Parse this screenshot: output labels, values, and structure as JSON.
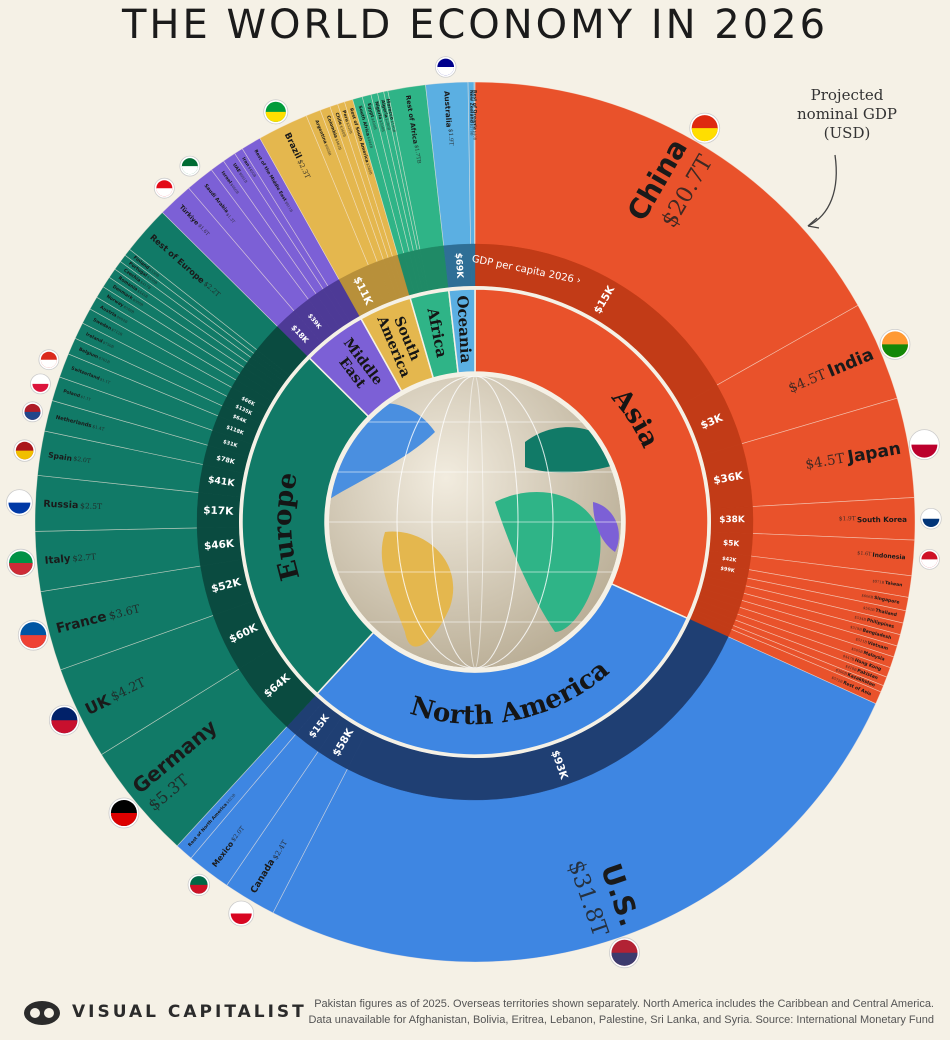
{
  "title": "THE WORLD ECONOMY IN 2026",
  "annotation": "Projected nominal GDP (USD)",
  "per_capita_label": "GDP per capita 2026 ›",
  "footer": {
    "logo": "VISUAL CAPITALIST",
    "note_1": "Pakistan figures as of 2025. Overseas territories shown separately. North America includes the Caribbean and Central America.",
    "note_2": "Data unavailable for Afghanistan, Bolivia, Eritrea, Lebanon, Palestine, Sri Lanka, and Syria. Source: International Monetary Fund"
  },
  "chart_data": {
    "type": "sunburst",
    "title": "THE WORLD ECONOMY IN 2026",
    "unit": "Projected nominal GDP (USD, trillions)",
    "regions": [
      {
        "name": "Asia",
        "color": "#e9522b",
        "dark": "#c23b17",
        "countries": [
          {
            "name": "China",
            "gdp": 20.7,
            "label": "$20.7T",
            "per_capita": "$15K",
            "flag": [
              "#de2910",
              "#ffde00"
            ]
          },
          {
            "name": "India",
            "gdp": 4.5,
            "label": "$4.5T",
            "per_capita": "$3K",
            "flag": [
              "#ff9933",
              "#138808"
            ]
          },
          {
            "name": "Japan",
            "gdp": 4.5,
            "label": "$4.5T",
            "per_capita": "$36K",
            "flag": [
              "#ffffff",
              "#bc002d"
            ]
          },
          {
            "name": "South Korea",
            "gdp": 1.9,
            "label": "$1.9T",
            "per_capita": "$38K",
            "flag": [
              "#ffffff",
              "#003478"
            ]
          },
          {
            "name": "Indonesia",
            "gdp": 1.6,
            "label": "$1.6T",
            "per_capita": "$5K",
            "flag": [
              "#ce1126",
              "#ffffff"
            ]
          },
          {
            "name": "Taiwan",
            "gdp": 0.971,
            "label": "$971B",
            "per_capita": "$42K"
          },
          {
            "name": "Singapore",
            "gdp": 0.606,
            "label": "$606B",
            "per_capita": "$99K"
          },
          {
            "name": "Thailand",
            "gdp": 0.562,
            "label": "$562B"
          },
          {
            "name": "Philippines",
            "gdp": 0.534,
            "label": "$534B"
          },
          {
            "name": "Bangladesh",
            "gdp": 0.519,
            "label": "$519B"
          },
          {
            "name": "Vietnam",
            "gdp": 0.511,
            "label": "$511B"
          },
          {
            "name": "Malaysia",
            "gdp": 0.505,
            "label": "$505B"
          },
          {
            "name": "Hong Kong",
            "gdp": 0.447,
            "label": "$447B"
          },
          {
            "name": "Pakistan",
            "gdp": 0.41,
            "label": "$410B"
          },
          {
            "name": "Kazakhstan",
            "gdp": 0.3,
            "label": "$300B"
          },
          {
            "name": "Rest of Asia",
            "gdp": 0.572,
            "label": "$572B"
          }
        ]
      },
      {
        "name": "North America",
        "color": "#3e86e2",
        "dark": "#1f3f73",
        "countries": [
          {
            "name": "U.S.",
            "gdp": 31.8,
            "label": "$31.8T",
            "per_capita": "$93K",
            "flag": [
              "#b22234",
              "#3c3b6e"
            ]
          },
          {
            "name": "Canada",
            "gdp": 2.4,
            "label": "$2.4T",
            "per_capita": "$58K",
            "flag": [
              "#ffffff",
              "#d80621"
            ]
          },
          {
            "name": "Mexico",
            "gdp": 2.0,
            "label": "$2.0T",
            "per_capita": "$15K",
            "flag": [
              "#006847",
              "#ce1126"
            ]
          },
          {
            "name": "Rest of North America",
            "gdp": 0.823,
            "label": "$823B"
          }
        ]
      },
      {
        "name": "Europe",
        "color": "#117a67",
        "dark": "#0a4b40",
        "countries": [
          {
            "name": "Germany",
            "gdp": 5.3,
            "label": "$5.3T",
            "per_capita": "$64K",
            "flag": [
              "#000000",
              "#dd0000"
            ]
          },
          {
            "name": "UK",
            "gdp": 4.2,
            "label": "$4.2T",
            "per_capita": "$60K",
            "flag": [
              "#012169",
              "#c8102e"
            ]
          },
          {
            "name": "France",
            "gdp": 3.6,
            "label": "$3.6T",
            "per_capita": "$52K",
            "flag": [
              "#0055a4",
              "#ef4135"
            ]
          },
          {
            "name": "Italy",
            "gdp": 2.7,
            "label": "$2.7T",
            "per_capita": "$46K",
            "flag": [
              "#009246",
              "#ce2b37"
            ]
          },
          {
            "name": "Russia",
            "gdp": 2.5,
            "label": "$2.5T",
            "per_capita": "$17K",
            "flag": [
              "#ffffff",
              "#0039a6"
            ]
          },
          {
            "name": "Spain",
            "gdp": 2.0,
            "label": "$2.0T",
            "per_capita": "$41K",
            "flag": [
              "#aa151b",
              "#f1bf00"
            ]
          },
          {
            "name": "Netherlands",
            "gdp": 1.4,
            "label": "$1.4T",
            "per_capita": "$78K",
            "flag": [
              "#ae1c28",
              "#21468b"
            ]
          },
          {
            "name": "Poland",
            "gdp": 1.1,
            "label": "$1.1T",
            "per_capita": "$31K",
            "flag": [
              "#ffffff",
              "#dc143c"
            ]
          },
          {
            "name": "Switzerland",
            "gdp": 1.1,
            "label": "$1.1T",
            "per_capita": "$118K",
            "flag": [
              "#da291c",
              "#ffffff"
            ]
          },
          {
            "name": "Belgium",
            "gdp": 0.761,
            "label": "$761B",
            "per_capita": "$64K"
          },
          {
            "name": "Ireland",
            "gdp": 0.75,
            "label": "$750B",
            "per_capita": "$135K"
          },
          {
            "name": "Sweden",
            "gdp": 0.712,
            "label": "$712B",
            "per_capita": "$66K"
          },
          {
            "name": "Austria",
            "gdp": 0.604,
            "label": "$604B"
          },
          {
            "name": "Norway",
            "gdp": 0.548,
            "label": "$548B"
          },
          {
            "name": "Denmark",
            "gdp": 0.5,
            "label": "$500B"
          },
          {
            "name": "Romania",
            "gdp": 0.445,
            "label": "$445B"
          },
          {
            "name": "Czechia",
            "gdp": 0.417,
            "label": "$417B"
          },
          {
            "name": "Portugal",
            "gdp": 0.35,
            "label": "$350B"
          },
          {
            "name": "Finland",
            "gdp": 0.33,
            "label": "$330B"
          },
          {
            "name": "Rest of Europe",
            "gdp": 2.2,
            "label": "$2.2T"
          }
        ]
      },
      {
        "name": "Middle East",
        "color": "#7c60d6",
        "dark": "#4d3a96",
        "countries": [
          {
            "name": "Türkiye",
            "gdp": 1.6,
            "label": "$1.6T",
            "per_capita": "$18K",
            "flag": [
              "#e30a17",
              "#ffffff"
            ]
          },
          {
            "name": "Saudi Arabia",
            "gdp": 1.3,
            "label": "$1.3T",
            "per_capita": "$39K",
            "flag": [
              "#006c35",
              "#ffffff"
            ]
          },
          {
            "name": "Israel",
            "gdp": 0.666,
            "label": "$666B"
          },
          {
            "name": "UAE",
            "gdp": 0.601,
            "label": "$601B"
          },
          {
            "name": "Iran",
            "gdp": 0.4,
            "label": "$400B"
          },
          {
            "name": "Rest of the Middle East",
            "gdp": 0.911,
            "label": "$911B"
          }
        ]
      },
      {
        "name": "South America",
        "color": "#e4b74e",
        "dark": "#b8903a",
        "countries": [
          {
            "name": "Brazil",
            "gdp": 2.3,
            "label": "$2.3T",
            "per_capita": "$11K",
            "flag": [
              "#009c3b",
              "#ffdf00"
            ]
          },
          {
            "name": "Argentina",
            "gdp": 0.668,
            "label": "$668B"
          },
          {
            "name": "Colombia",
            "gdp": 0.462,
            "label": "$462B"
          },
          {
            "name": "Chile",
            "gdp": 0.36,
            "label": "$360B"
          },
          {
            "name": "Peru",
            "gdp": 0.32,
            "label": "$320B"
          },
          {
            "name": "Rest of South America",
            "gdp": 0.38,
            "label": "$380B"
          }
        ]
      },
      {
        "name": "Africa",
        "color": "#2fb487",
        "dark": "#1f8a66",
        "countries": [
          {
            "name": "South Africa",
            "gdp": 0.444,
            "label": "$444B"
          },
          {
            "name": "Egypt",
            "gdp": 0.4,
            "label": "$400B"
          },
          {
            "name": "Nigeria",
            "gdp": 0.3,
            "label": "$300B"
          },
          {
            "name": "Algeria",
            "gdp": 0.28,
            "label": "$280B"
          },
          {
            "name": "Morocco",
            "gdp": 0.19,
            "label": "$190B"
          },
          {
            "name": "Rest of Africa",
            "gdp": 1.7,
            "label": "$1.7TB"
          }
        ]
      },
      {
        "name": "Oceania",
        "color": "#5bafe2",
        "dark": "#2f6f96",
        "countries": [
          {
            "name": "Australia",
            "gdp": 1.9,
            "label": "$1.9T",
            "per_capita": "$69K",
            "flag": [
              "#00008b",
              "#ffffff"
            ]
          },
          {
            "name": "New Zealand",
            "gdp": 0.27,
            "label": "$270B"
          },
          {
            "name": "Rest of Oceania",
            "gdp": 0.04,
            "label": "$40B"
          }
        ]
      }
    ]
  }
}
